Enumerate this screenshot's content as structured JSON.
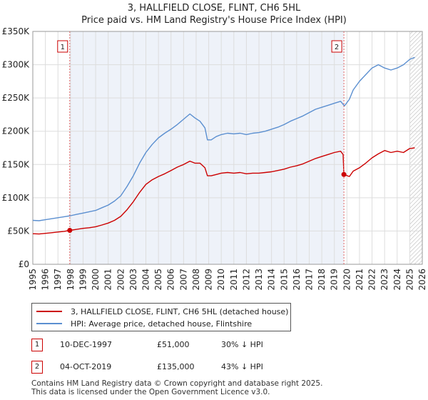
{
  "title_line1": "3, HALLFIELD CLOSE, FLINT, CH6 5HL",
  "title_line2": "Price paid vs. HM Land Registry's House Price Index (HPI)",
  "legend": {
    "property_label": "3, HALLFIELD CLOSE, FLINT, CH6 5HL (detached house)",
    "hpi_label": "HPI: Average price, detached house, Flintshire"
  },
  "sales": [
    {
      "badge": "1",
      "date": "10-DEC-1997",
      "price": "£51,000",
      "hpi_diff": "30% ↓ HPI"
    },
    {
      "badge": "2",
      "date": "04-OCT-2019",
      "price": "£135,000",
      "hpi_diff": "43% ↓ HPI"
    }
  ],
  "footer_line1": "Contains HM Land Registry data © Crown copyright and database right 2025.",
  "footer_line2": "This data is licensed under the Open Government Licence v3.0.",
  "colors": {
    "property": "#cc0000",
    "hpi": "#5b8fd0",
    "grid": "#dddddd",
    "shade": "#eef2f9",
    "marker_line": "#e06666"
  },
  "chart_data": {
    "type": "line",
    "xlim": [
      1995,
      2026
    ],
    "ylim": [
      0,
      350000
    ],
    "x_ticks": [
      "1995",
      "1996",
      "1997",
      "1998",
      "1999",
      "2000",
      "2001",
      "2002",
      "2003",
      "2004",
      "2005",
      "2006",
      "2007",
      "2008",
      "2009",
      "2010",
      "2011",
      "2012",
      "2013",
      "2014",
      "2015",
      "2016",
      "2017",
      "2018",
      "2019",
      "2020",
      "2021",
      "2022",
      "2023",
      "2024",
      "2025",
      "2026"
    ],
    "y_ticks": [
      {
        "value": 0,
        "label": "£0"
      },
      {
        "value": 50000,
        "label": "£50K"
      },
      {
        "value": 100000,
        "label": "£100K"
      },
      {
        "value": 150000,
        "label": "£150K"
      },
      {
        "value": 200000,
        "label": "£200K"
      },
      {
        "value": 250000,
        "label": "£250K"
      },
      {
        "value": 300000,
        "label": "£300K"
      },
      {
        "value": 350000,
        "label": "£350K"
      }
    ],
    "sale_markers": [
      {
        "label": "1",
        "x": 1997.94,
        "y": 51000
      },
      {
        "label": "2",
        "x": 2019.76,
        "y": 135000
      }
    ],
    "hatch_from": 2025.0,
    "series": [
      {
        "name": "3, HALLFIELD CLOSE, FLINT, CH6 5HL (detached house)",
        "x": [
          1995.0,
          1995.5,
          1996.0,
          1996.5,
          1997.0,
          1997.5,
          1997.94,
          1998.5,
          1999.0,
          1999.5,
          2000.0,
          2000.5,
          2001.0,
          2001.5,
          2002.0,
          2002.5,
          2003.0,
          2003.5,
          2004.0,
          2004.5,
          2005.0,
          2005.5,
          2006.0,
          2006.5,
          2007.0,
          2007.5,
          2007.9,
          2008.3,
          2008.7,
          2008.9,
          2009.2,
          2009.6,
          2010.0,
          2010.5,
          2011.0,
          2011.5,
          2012.0,
          2012.5,
          2013.0,
          2013.5,
          2014.0,
          2014.5,
          2015.0,
          2015.5,
          2016.0,
          2016.5,
          2017.0,
          2017.5,
          2018.0,
          2018.5,
          2019.0,
          2019.5,
          2019.7,
          2019.76,
          2020.2,
          2020.5,
          2021.0,
          2021.5,
          2022.0,
          2022.5,
          2023.0,
          2023.5,
          2024.0,
          2024.5,
          2025.0,
          2025.4
        ],
        "values": [
          46000,
          45500,
          46500,
          47500,
          48500,
          49500,
          51000,
          52500,
          54000,
          55000,
          56500,
          59000,
          62000,
          66000,
          72000,
          82000,
          94000,
          108000,
          120000,
          127000,
          132000,
          136000,
          141000,
          146000,
          150000,
          155000,
          152000,
          152000,
          145000,
          133000,
          133000,
          135000,
          137000,
          138000,
          137000,
          138000,
          136000,
          137000,
          137000,
          138000,
          139000,
          141000,
          143000,
          146000,
          148000,
          151000,
          155000,
          159000,
          162000,
          165000,
          168000,
          170000,
          165000,
          135000,
          132000,
          140000,
          145000,
          152000,
          160000,
          166000,
          171000,
          168000,
          170000,
          168000,
          174000,
          175000
        ]
      },
      {
        "name": "HPI: Average price, detached house, Flintshire",
        "x": [
          1995.0,
          1995.5,
          1996.0,
          1996.5,
          1997.0,
          1997.5,
          1998.0,
          1998.5,
          1999.0,
          1999.5,
          2000.0,
          2000.5,
          2001.0,
          2001.5,
          2002.0,
          2002.5,
          2003.0,
          2003.5,
          2004.0,
          2004.5,
          2005.0,
          2005.5,
          2006.0,
          2006.5,
          2007.0,
          2007.5,
          2007.9,
          2008.3,
          2008.7,
          2008.9,
          2009.2,
          2009.6,
          2010.0,
          2010.5,
          2011.0,
          2011.5,
          2012.0,
          2012.5,
          2013.0,
          2013.5,
          2014.0,
          2014.5,
          2015.0,
          2015.5,
          2016.0,
          2016.5,
          2017.0,
          2017.5,
          2018.0,
          2018.5,
          2019.0,
          2019.5,
          2019.8,
          2020.2,
          2020.5,
          2021.0,
          2021.5,
          2022.0,
          2022.5,
          2023.0,
          2023.5,
          2024.0,
          2024.5,
          2025.0,
          2025.4
        ],
        "values": [
          66000,
          65500,
          67000,
          68500,
          70000,
          71500,
          73000,
          75000,
          77000,
          79000,
          81000,
          85000,
          89000,
          95000,
          103000,
          117000,
          133000,
          152000,
          168000,
          180000,
          190000,
          197000,
          203000,
          210000,
          218000,
          226000,
          220000,
          215000,
          205000,
          187000,
          187000,
          192000,
          195000,
          197000,
          196000,
          197000,
          195000,
          197000,
          198000,
          200000,
          203000,
          206000,
          210000,
          215000,
          219000,
          223000,
          228000,
          233000,
          236000,
          239000,
          242000,
          245000,
          238000,
          248000,
          262000,
          275000,
          285000,
          295000,
          300000,
          295000,
          292000,
          295000,
          300000,
          308000,
          311000
        ]
      }
    ]
  }
}
